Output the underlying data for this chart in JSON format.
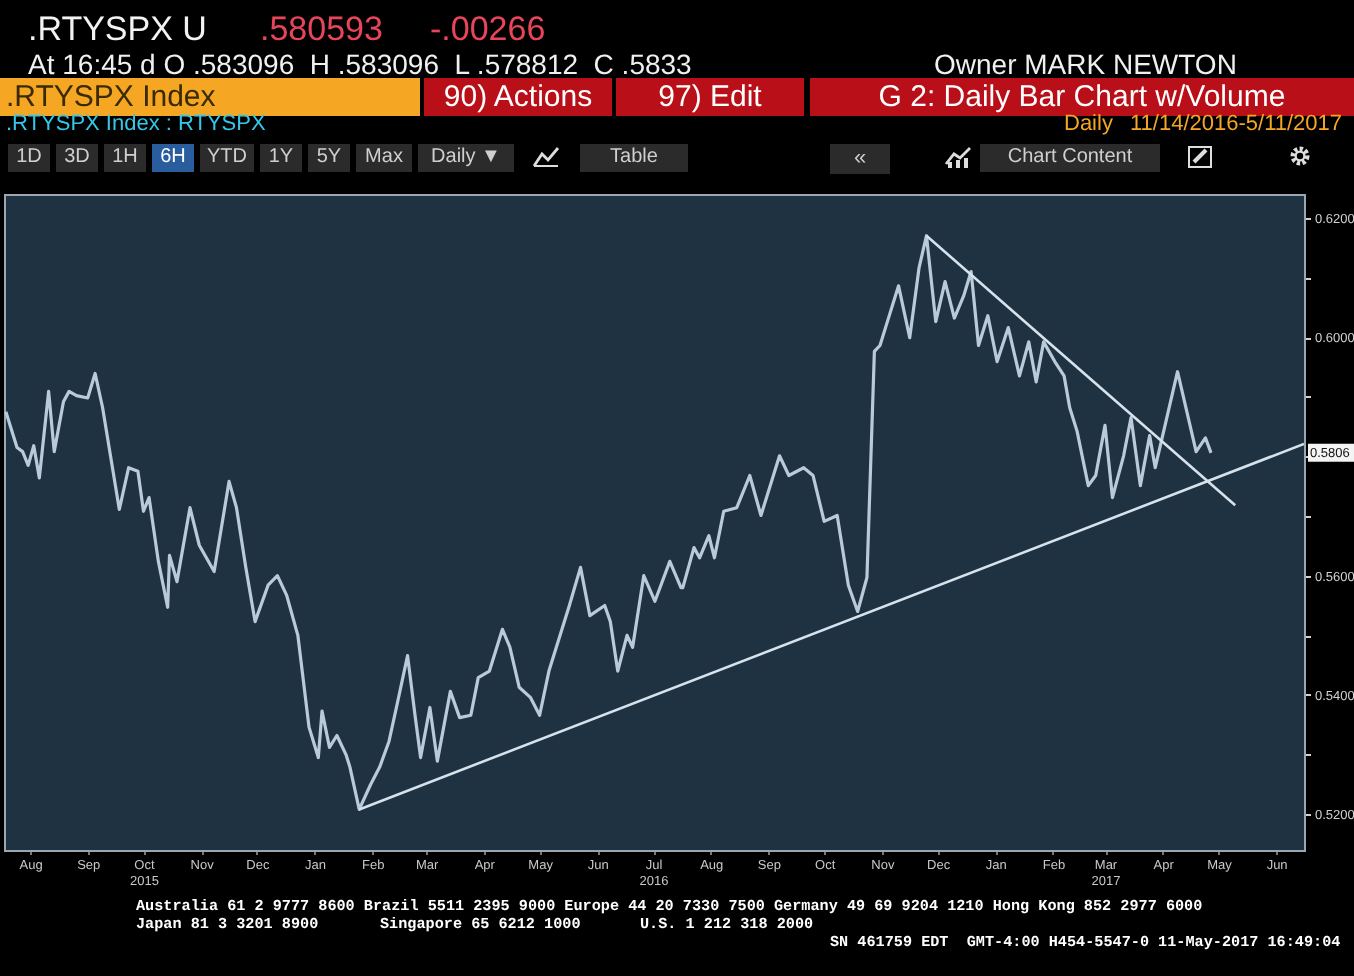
{
  "chart_data": {
    "type": "line",
    "annotations": [
      ".RTYSPX U",
      ".580593",
      "-.00266",
      "At 16:45 d O .583096  H .583096  L .578812  C .5833",
      "Owner MARK NEWTON",
      ".RTYSPX Index",
      "90) Actions",
      "97) Edit",
      "G 2: Daily Bar Chart w/Volume",
      ".RTYSPX Index : RTYSPX",
      "Daily",
      "11/14/2016-5/11/2017",
      "1D",
      "3D",
      "1H",
      "6H",
      "YTD",
      "1Y",
      "5Y",
      "Max",
      "Daily ▼",
      "Table",
      "«",
      "Chart Content",
      "Australia 61 2 9777 8600 Brazil 5511 2395 9000 Europe 44 20 7330 7500 Germany 49 69 9204 1210 Hong Kong 852 2977 6000",
      "Japan 81 3 3201 8900",
      "Singapore 65 6212 1000",
      "U.S. 1 212 318 2000",
      "SN 461759 EDT  GMT-4:00 H454-5547-0 11-May-2017 16:49:04",
      {
        "text": "0.5806",
        "x": "2017-06-30",
        "y": 0.5806
      }
    ],
    "xlim": [
      "2015-08-01",
      "2017-06-30"
    ],
    "xticks": [
      {
        "value": "2015-08-15",
        "label": "Aug"
      },
      {
        "value": "2015-09-15",
        "label": "Sep"
      },
      {
        "value": "2015-10-15",
        "label": "Oct\n2015"
      },
      {
        "value": "2015-11-15",
        "label": "Nov"
      },
      {
        "value": "2015-12-15",
        "label": "Dec"
      },
      {
        "value": "2016-01-15",
        "label": "Jan"
      },
      {
        "value": "2016-02-15",
        "label": "Feb"
      },
      {
        "value": "2016-03-15",
        "label": "Mar"
      },
      {
        "value": "2016-04-15",
        "label": "Apr"
      },
      {
        "value": "2016-05-15",
        "label": "May"
      },
      {
        "value": "2016-06-15",
        "label": "Jun"
      },
      {
        "value": "2016-07-15",
        "label": "Jul\n2016"
      },
      {
        "value": "2016-08-15",
        "label": "Aug"
      },
      {
        "value": "2016-09-15",
        "label": "Sep"
      },
      {
        "value": "2016-10-15",
        "label": "Oct"
      },
      {
        "value": "2016-11-15",
        "label": "Nov"
      },
      {
        "value": "2016-12-15",
        "label": "Dec"
      },
      {
        "value": "2017-01-15",
        "label": "Jan"
      },
      {
        "value": "2017-02-15",
        "label": "Feb"
      },
      {
        "value": "2017-03-15",
        "label": "Mar\n2017"
      },
      {
        "value": "2017-04-15",
        "label": "Apr"
      },
      {
        "value": "2017-05-15",
        "label": "May"
      },
      {
        "value": "2017-06-15",
        "label": "Jun"
      }
    ],
    "ylim": [
      0.514,
      0.624
    ],
    "yticks": [
      {
        "value": 0.52,
        "label": "0.5200"
      },
      {
        "value": 0.53,
        "label": null
      },
      {
        "value": 0.54,
        "label": "0.5400"
      },
      {
        "value": 0.55,
        "label": null
      },
      {
        "value": 0.56,
        "label": "0.5600"
      },
      {
        "value": 0.57,
        "label": null
      },
      {
        "value": 0.58,
        "label": null
      },
      {
        "value": 0.59,
        "label": null
      },
      {
        "value": 0.6,
        "label": "0.6000"
      },
      {
        "value": 0.61,
        "label": null
      },
      {
        "value": 0.62,
        "label": "0.6200"
      }
    ],
    "grid": false,
    "marker": "none",
    "line_style": "solid",
    "series": [
      {
        "color": "#b9cad8",
        "x": [
          "2015-08-02",
          "2015-08-08",
          "2015-08-11",
          "2015-08-14",
          "2015-08-17",
          "2015-08-20",
          "2015-08-25",
          "2015-08-28",
          "2015-09-02",
          "2015-09-05",
          "2015-09-09",
          "2015-09-15",
          "2015-09-19",
          "2015-09-23",
          "2015-09-29",
          "2015-10-02",
          "2015-10-07",
          "2015-10-12",
          "2015-10-15",
          "2015-10-18",
          "2015-10-23",
          "2015-10-28",
          "2015-10-29",
          "2015-11-02",
          "2015-11-09",
          "2015-11-14",
          "2015-11-22",
          "2015-11-30",
          "2015-12-04",
          "2015-12-09",
          "2015-12-14",
          "2015-12-21",
          "2015-12-26",
          "2015-12-31",
          "2016-01-06",
          "2016-01-12",
          "2016-01-17",
          "2016-01-19",
          "2016-01-23",
          "2016-01-27",
          "2016-02-01",
          "2016-02-03",
          "2016-02-08",
          "2016-02-14",
          "2016-02-19",
          "2016-02-24",
          "2016-02-28",
          "2016-03-05",
          "2016-03-09",
          "2016-03-12",
          "2016-03-17",
          "2016-03-21",
          "2016-03-28",
          "2016-04-02",
          "2016-04-08",
          "2016-04-12",
          "2016-04-18",
          "2016-04-25",
          "2016-04-29",
          "2016-05-04",
          "2016-05-10",
          "2016-05-15",
          "2016-05-20",
          "2016-05-31",
          "2016-06-06",
          "2016-06-11",
          "2016-06-19",
          "2016-06-22",
          "2016-06-26",
          "2016-07-01",
          "2016-07-04",
          "2016-07-10",
          "2016-07-16",
          "2016-07-24",
          "2016-07-30",
          "2016-07-31",
          "2016-08-06",
          "2016-08-09",
          "2016-08-14",
          "2016-08-17",
          "2016-08-22",
          "2016-08-29",
          "2016-09-05",
          "2016-09-11",
          "2016-09-21",
          "2016-09-26",
          "2016-10-04",
          "2016-10-09",
          "2016-10-15",
          "2016-10-22",
          "2016-10-28",
          "2016-11-02",
          "2016-11-07",
          "2016-11-11",
          "2016-11-14",
          "2016-11-18",
          "2016-11-24",
          "2016-11-30",
          "2016-12-05",
          "2016-12-09",
          "2016-12-14",
          "2016-12-19",
          "2016-12-24",
          "2016-12-29",
          "2017-01-02",
          "2017-01-06",
          "2017-01-11",
          "2017-01-16",
          "2017-01-22",
          "2017-01-28",
          "2017-02-02",
          "2017-02-06",
          "2017-02-10",
          "2017-02-16",
          "2017-02-21",
          "2017-02-24",
          "2017-02-28",
          "2017-03-06",
          "2017-03-10",
          "2017-03-15",
          "2017-03-19",
          "2017-03-25",
          "2017-03-29",
          "2017-04-03",
          "2017-04-08",
          "2017-04-11",
          "2017-04-18",
          "2017-04-23",
          "2017-04-28",
          "2017-05-03",
          "2017-05-08",
          "2017-05-11"
        ],
        "values": [
          0.5875,
          0.5815,
          0.5808,
          0.5785,
          0.5818,
          0.5764,
          0.5909,
          0.5808,
          0.5892,
          0.5909,
          0.5902,
          0.5898,
          0.5939,
          0.5882,
          0.5768,
          0.5711,
          0.5781,
          0.5775,
          0.5708,
          0.5731,
          0.5624,
          0.5547,
          0.5634,
          0.559,
          0.5714,
          0.5651,
          0.5607,
          0.5758,
          0.5714,
          0.5614,
          0.5523,
          0.5584,
          0.56,
          0.5567,
          0.55,
          0.5346,
          0.5295,
          0.5373,
          0.5312,
          0.5332,
          0.5299,
          0.5279,
          0.5208,
          0.5249,
          0.5279,
          0.5322,
          0.5379,
          0.5466,
          0.5366,
          0.5295,
          0.5379,
          0.5289,
          0.5406,
          0.5362,
          0.5366,
          0.5429,
          0.544,
          0.551,
          0.548,
          0.5413,
          0.5396,
          0.5366,
          0.544,
          0.555,
          0.5614,
          0.5533,
          0.555,
          0.5523,
          0.544,
          0.55,
          0.548,
          0.56,
          0.5557,
          0.5624,
          0.558,
          0.558,
          0.5647,
          0.563,
          0.5667,
          0.563,
          0.5708,
          0.5714,
          0.5768,
          0.5701,
          0.5801,
          0.5768,
          0.5781,
          0.5768,
          0.5691,
          0.5701,
          0.5584,
          0.554,
          0.5597,
          0.5976,
          0.5986,
          0.6026,
          0.6086,
          0.5999,
          0.6116,
          0.617,
          0.6026,
          0.6093,
          0.6032,
          0.6069,
          0.611,
          0.5986,
          0.6036,
          0.5959,
          0.6016,
          0.5935,
          0.5992,
          0.5925,
          0.5992,
          0.5959,
          0.5935,
          0.5882,
          0.5842,
          0.5751,
          0.5768,
          0.5852,
          0.5731,
          0.5801,
          0.5865,
          0.5751,
          0.5835,
          0.5781,
          0.5875,
          0.5942,
          0.5875,
          0.5808,
          0.5831,
          0.5806
        ]
      },
      {
        "type": "line",
        "color": "#d7e2ea",
        "x": [
          "2016-02-08",
          "2017-06-30"
        ],
        "values": [
          0.5208,
          0.5821
        ]
      },
      {
        "type": "line",
        "color": "#d7e2ea",
        "x": [
          "2016-12-09",
          "2017-05-24"
        ],
        "values": [
          0.617,
          0.5718
        ]
      }
    ]
  }
}
